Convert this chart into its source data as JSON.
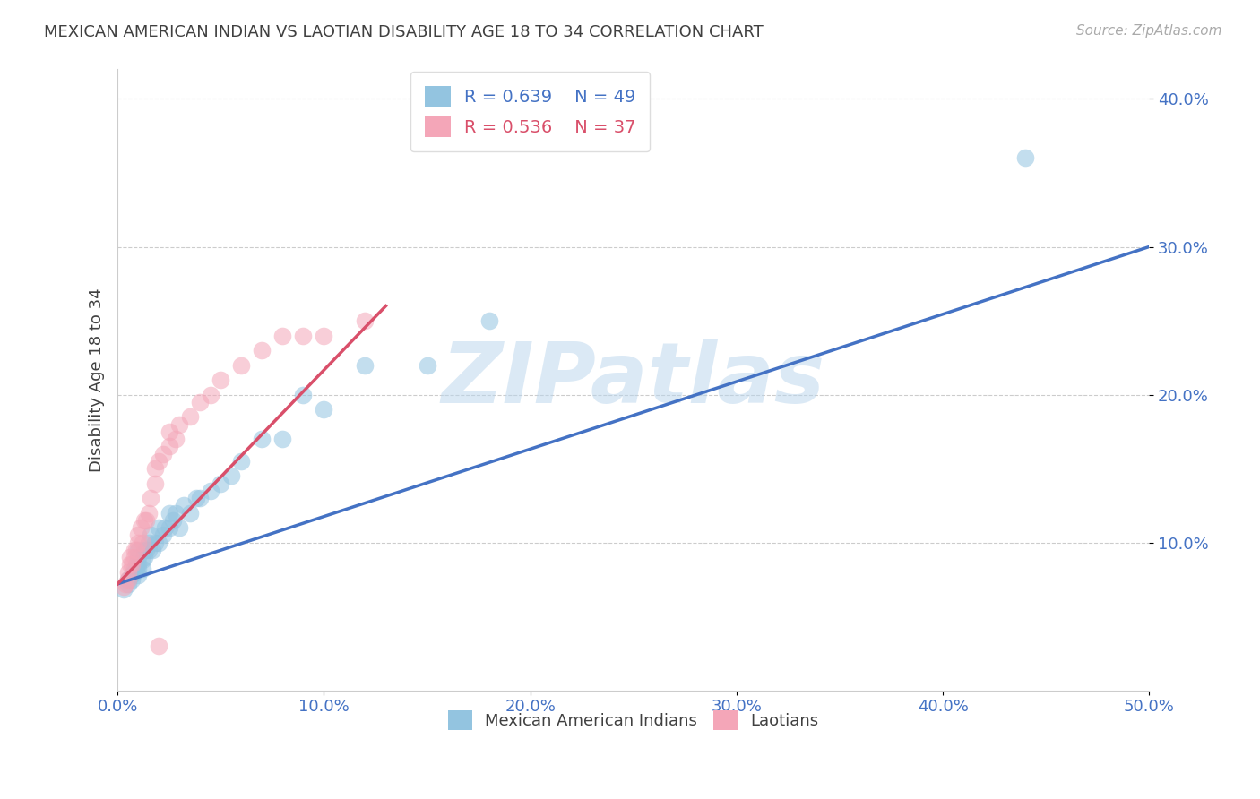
{
  "title": "MEXICAN AMERICAN INDIAN VS LAOTIAN DISABILITY AGE 18 TO 34 CORRELATION CHART",
  "source_text": "Source: ZipAtlas.com",
  "ylabel": "Disability Age 18 to 34",
  "xlim": [
    0.0,
    0.5
  ],
  "ylim": [
    0.0,
    0.42
  ],
  "xticks": [
    0.0,
    0.1,
    0.2,
    0.3,
    0.4,
    0.5
  ],
  "yticks": [
    0.1,
    0.2,
    0.3,
    0.4
  ],
  "xtick_labels": [
    "0.0%",
    "10.0%",
    "20.0%",
    "30.0%",
    "40.0%",
    "50.0%"
  ],
  "ytick_labels": [
    "10.0%",
    "20.0%",
    "30.0%",
    "40.0%"
  ],
  "blue_color": "#93c4e0",
  "pink_color": "#f4a6b8",
  "blue_line_color": "#4472c4",
  "pink_line_color": "#d94f6a",
  "title_color": "#404040",
  "axis_tick_color": "#4472c4",
  "watermark": "ZIPatlas",
  "blue_scatter_x": [
    0.003,
    0.005,
    0.005,
    0.007,
    0.007,
    0.008,
    0.008,
    0.009,
    0.009,
    0.01,
    0.01,
    0.01,
    0.01,
    0.01,
    0.012,
    0.012,
    0.013,
    0.013,
    0.014,
    0.015,
    0.015,
    0.016,
    0.017,
    0.018,
    0.02,
    0.02,
    0.022,
    0.023,
    0.025,
    0.025,
    0.027,
    0.028,
    0.03,
    0.032,
    0.035,
    0.038,
    0.04,
    0.045,
    0.05,
    0.055,
    0.06,
    0.07,
    0.08,
    0.09,
    0.1,
    0.12,
    0.15,
    0.18,
    0.44
  ],
  "blue_scatter_y": [
    0.068,
    0.072,
    0.075,
    0.075,
    0.078,
    0.08,
    0.082,
    0.082,
    0.085,
    0.078,
    0.082,
    0.085,
    0.09,
    0.095,
    0.082,
    0.088,
    0.09,
    0.095,
    0.095,
    0.095,
    0.1,
    0.105,
    0.095,
    0.1,
    0.1,
    0.11,
    0.105,
    0.11,
    0.11,
    0.12,
    0.115,
    0.12,
    0.11,
    0.125,
    0.12,
    0.13,
    0.13,
    0.135,
    0.14,
    0.145,
    0.155,
    0.17,
    0.17,
    0.2,
    0.19,
    0.22,
    0.22,
    0.25,
    0.36
  ],
  "pink_scatter_x": [
    0.003,
    0.004,
    0.005,
    0.005,
    0.006,
    0.006,
    0.007,
    0.008,
    0.008,
    0.009,
    0.01,
    0.01,
    0.011,
    0.012,
    0.013,
    0.014,
    0.015,
    0.016,
    0.018,
    0.018,
    0.02,
    0.022,
    0.025,
    0.025,
    0.028,
    0.03,
    0.035,
    0.04,
    0.045,
    0.05,
    0.06,
    0.07,
    0.08,
    0.09,
    0.1,
    0.12,
    0.02
  ],
  "pink_scatter_y": [
    0.07,
    0.072,
    0.075,
    0.08,
    0.085,
    0.09,
    0.085,
    0.09,
    0.095,
    0.095,
    0.1,
    0.105,
    0.11,
    0.1,
    0.115,
    0.115,
    0.12,
    0.13,
    0.14,
    0.15,
    0.155,
    0.16,
    0.165,
    0.175,
    0.17,
    0.18,
    0.185,
    0.195,
    0.2,
    0.21,
    0.22,
    0.23,
    0.24,
    0.24,
    0.24,
    0.25,
    0.03
  ],
  "blue_line_x": [
    0.0,
    0.5
  ],
  "blue_line_y": [
    0.072,
    0.3
  ],
  "pink_line_x": [
    0.0,
    0.13
  ],
  "pink_line_y": [
    0.072,
    0.26
  ]
}
